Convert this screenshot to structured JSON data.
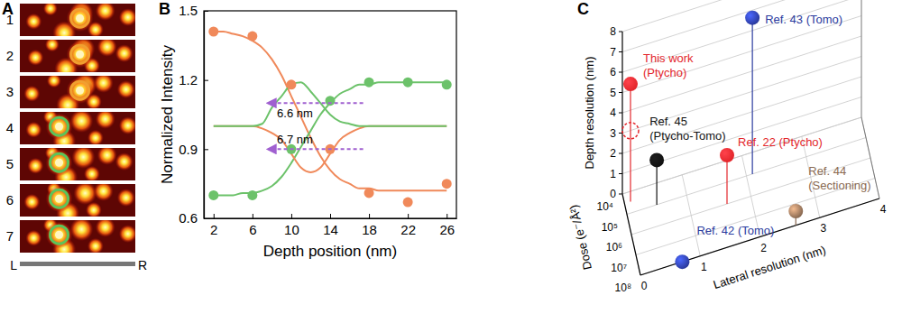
{
  "image_panel": {
    "panel_label": "A",
    "rows": [
      "1",
      "2",
      "3",
      "4",
      "5",
      "6",
      "7"
    ],
    "scale_bar_labels": [
      "L",
      "R"
    ]
  },
  "chart_data": [
    {
      "panel_label": "B",
      "type": "line",
      "x_label": "Depth position (nm)",
      "y_label": "Normalized Intensity",
      "xlim": [
        1,
        27
      ],
      "xticks": [
        2,
        6,
        10,
        14,
        18,
        22,
        26
      ],
      "ylim": [
        0.6,
        1.5
      ],
      "yticks": [
        0.6,
        0.9,
        1.2,
        1.5
      ],
      "series": [
        {
          "type": "scatter",
          "marker": "circle",
          "color": "#f0895a",
          "x": [
            2,
            6,
            10,
            14,
            18,
            22,
            26
          ],
          "values": [
            1.41,
            1.39,
            1.18,
            0.9,
            0.71,
            0.67,
            0.75
          ]
        },
        {
          "type": "scatter",
          "marker": "circle",
          "color": "#6cc26a",
          "x": [
            2,
            6,
            10,
            14,
            18,
            22,
            26
          ],
          "values": [
            0.7,
            0.7,
            0.9,
            1.11,
            1.19,
            1.19,
            1.18
          ]
        },
        {
          "type": "line",
          "line_style": "solid",
          "color": "#f0895a",
          "x": [
            2,
            3,
            4,
            5,
            6,
            7,
            8,
            9,
            10,
            11,
            12,
            13,
            14,
            15,
            16,
            17,
            18,
            19,
            20,
            21,
            22,
            23,
            24,
            25,
            26
          ],
          "values": [
            1.41,
            1.41,
            1.4,
            1.39,
            1.37,
            1.34,
            1.29,
            1.22,
            1.13,
            1.04,
            0.95,
            0.87,
            0.81,
            0.77,
            0.75,
            0.73,
            0.73,
            0.72,
            0.72,
            0.72,
            0.72,
            0.72,
            0.72,
            0.72,
            0.72
          ]
        },
        {
          "type": "line",
          "line_style": "solid",
          "color": "#6cc26a",
          "x": [
            2,
            3,
            4,
            5,
            6,
            7,
            8,
            9,
            10,
            11,
            12,
            13,
            14,
            15,
            16,
            17,
            18,
            19,
            20,
            21,
            22,
            23,
            24,
            25,
            26
          ],
          "values": [
            0.7,
            0.7,
            0.7,
            0.71,
            0.71,
            0.72,
            0.74,
            0.78,
            0.84,
            0.91,
            0.98,
            1.05,
            1.1,
            1.14,
            1.16,
            1.18,
            1.18,
            1.19,
            1.19,
            1.19,
            1.19,
            1.19,
            1.19,
            1.19,
            1.19
          ]
        },
        {
          "type": "line",
          "line_style": "solid",
          "color": "#f0895a",
          "x": [
            2,
            3,
            4,
            5,
            6,
            7,
            8,
            9,
            10,
            11,
            12,
            13,
            14,
            15,
            16,
            17,
            18,
            19,
            20,
            21,
            22,
            23,
            24,
            25,
            26
          ],
          "values": [
            1.0,
            1.0,
            1.0,
            1.0,
            1.0,
            0.99,
            0.97,
            0.94,
            0.88,
            0.82,
            0.8,
            0.82,
            0.88,
            0.94,
            0.97,
            0.99,
            1.0,
            1.0,
            1.0,
            1.0,
            1.0,
            1.0,
            1.0,
            1.0,
            1.0
          ]
        },
        {
          "type": "line",
          "line_style": "solid",
          "color": "#6cc26a",
          "x": [
            2,
            3,
            4,
            5,
            6,
            7,
            8,
            9,
            10,
            11,
            12,
            13,
            14,
            15,
            16,
            17,
            18,
            19,
            20,
            21,
            22,
            23,
            24,
            25,
            26
          ],
          "values": [
            1.0,
            1.0,
            1.0,
            1.0,
            1.0,
            1.01,
            1.08,
            1.13,
            1.18,
            1.19,
            1.15,
            1.1,
            1.05,
            1.02,
            1.01,
            1.0,
            1.0,
            1.0,
            1.0,
            1.0,
            1.0,
            1.0,
            1.0,
            1.0,
            1.0
          ]
        }
      ],
      "annotations": [
        {
          "text": "6.6 nm",
          "x": [
            7.6,
            17.4
          ],
          "y": 1.1,
          "color": "#a060d0"
        },
        {
          "text": "6.7 nm",
          "x": [
            7.6,
            17.4
          ],
          "y": 0.9,
          "color": "#a060d0"
        }
      ]
    },
    {
      "panel_label": "C",
      "type": "scatter3d",
      "x_label": "Dose (e⁻/Å²)",
      "y_label": "Lateral resolution (nm)",
      "z_label": "Depth resolution (nm)",
      "log": "x",
      "xlim": [
        10000,
        100000000
      ],
      "xticks": [
        {
          "value": 10000,
          "label": "10⁴"
        },
        {
          "value": 100000,
          "label": "10⁵"
        },
        {
          "value": 1000000,
          "label": "10⁶"
        },
        {
          "value": 10000000,
          "label": "10⁷"
        },
        {
          "value": 100000000,
          "label": "10⁸"
        }
      ],
      "ylim": [
        0,
        4
      ],
      "yticks": [
        0,
        1,
        2,
        3,
        4
      ],
      "zlim": [
        0,
        8
      ],
      "zticks": [
        0,
        1,
        2,
        3,
        4,
        5,
        6,
        7,
        8
      ],
      "points": [
        {
          "label": [
            "This work",
            "(Ptycho)"
          ],
          "color": "#e3262b",
          "x": 30000,
          "y": 0.1,
          "z": 5.8
        },
        {
          "marker": "dashed-circle",
          "color": "#e3262b",
          "x": 30000,
          "y": 0.1,
          "z": 3.5
        },
        {
          "label": [
            "Ref. 45",
            "(Ptycho-Tomo)"
          ],
          "color": "#111111",
          "x": 100000,
          "y": 0.5,
          "z": 2.2
        },
        {
          "label": [
            "Ref. 22 (Ptycho)"
          ],
          "color": "#e3262b",
          "x": 1000000,
          "y": 1.6,
          "z": 2.4
        },
        {
          "label": [
            "Ref. 43 (Tomo)"
          ],
          "color": "#2b3b9e",
          "x": 100000,
          "y": 2.1,
          "z": 7.7
        },
        {
          "label": [
            "Ref. 44",
            "(Sectioning)"
          ],
          "color": "#8a6a52",
          "x": 100000000,
          "y": 2.6,
          "z": 0.7
        },
        {
          "label": [
            "Ref. 42 (Tomo)"
          ],
          "color": "#2b3b9e",
          "x": 100000000,
          "y": 0.7,
          "z": 0.0
        }
      ]
    }
  ]
}
